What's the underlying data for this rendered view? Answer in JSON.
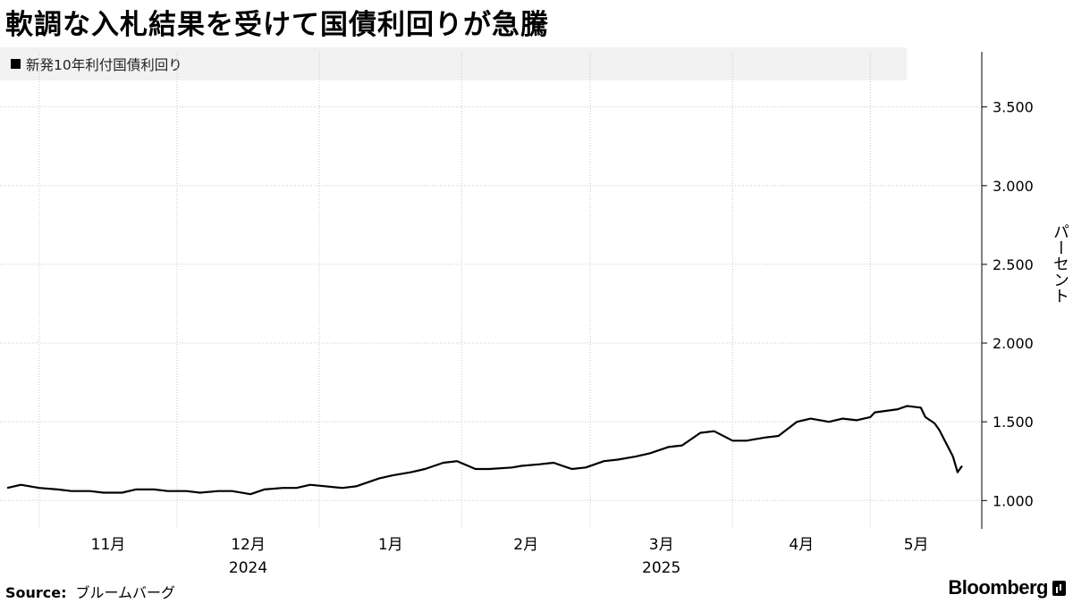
{
  "title": "軟調な入札結果を受けて国債利回りが急騰",
  "source_label": "Source:",
  "source_text": "ブルームバーグ",
  "brand": "Bloomberg",
  "chart_data": {
    "type": "line",
    "title": "軟調な入札結果を受けて国債利回りが急騰",
    "xlabel": "",
    "ylabel": "パーセント",
    "ylim": [
      0.82,
      3.85
    ],
    "yticks": [
      1.0,
      1.5,
      2.0,
      2.5,
      3.0,
      3.5
    ],
    "ytick_labels": [
      "1.000",
      "1.500",
      "2.000",
      "2.500",
      "3.000",
      "3.500"
    ],
    "x_range": [
      "2024-10-25",
      "2025-05-21"
    ],
    "month_ticks": [
      {
        "date": "2024-11-01",
        "label": "11月"
      },
      {
        "date": "2024-12-01",
        "label": "12月"
      },
      {
        "date": "2025-01-01",
        "label": "1月"
      },
      {
        "date": "2025-02-01",
        "label": "2月"
      },
      {
        "date": "2025-03-01",
        "label": "3月"
      },
      {
        "date": "2025-04-01",
        "label": "4月"
      },
      {
        "date": "2025-05-01",
        "label": "5月"
      }
    ],
    "year_labels": [
      {
        "date": "2024-12-01",
        "label": "2024"
      },
      {
        "date": "2025-03-01",
        "label": "2025"
      }
    ],
    "legend_position": "top-left",
    "grid": true,
    "series": [
      {
        "name": "新発10年利付国債利回り",
        "color": "#000000",
        "points": [
          [
            "2024-10-25",
            1.08
          ],
          [
            "2024-10-28",
            1.1
          ],
          [
            "2024-11-01",
            1.08
          ],
          [
            "2024-11-05",
            1.07
          ],
          [
            "2024-11-08",
            1.06
          ],
          [
            "2024-11-12",
            1.06
          ],
          [
            "2024-11-15",
            1.05
          ],
          [
            "2024-11-19",
            1.05
          ],
          [
            "2024-11-22",
            1.07
          ],
          [
            "2024-11-26",
            1.07
          ],
          [
            "2024-11-29",
            1.06
          ],
          [
            "2024-12-03",
            1.06
          ],
          [
            "2024-12-06",
            1.05
          ],
          [
            "2024-12-10",
            1.06
          ],
          [
            "2024-12-13",
            1.06
          ],
          [
            "2024-12-17",
            1.04
          ],
          [
            "2024-12-20",
            1.07
          ],
          [
            "2024-12-24",
            1.08
          ],
          [
            "2024-12-27",
            1.08
          ],
          [
            "2024-12-30",
            1.1
          ],
          [
            "2025-01-06",
            1.08
          ],
          [
            "2025-01-09",
            1.09
          ],
          [
            "2025-01-14",
            1.14
          ],
          [
            "2025-01-17",
            1.16
          ],
          [
            "2025-01-21",
            1.18
          ],
          [
            "2025-01-24",
            1.2
          ],
          [
            "2025-01-28",
            1.24
          ],
          [
            "2025-01-31",
            1.25
          ],
          [
            "2025-02-04",
            1.2
          ],
          [
            "2025-02-07",
            1.2
          ],
          [
            "2025-02-12",
            1.21
          ],
          [
            "2025-02-14",
            1.22
          ],
          [
            "2025-02-18",
            1.23
          ],
          [
            "2025-02-21",
            1.24
          ],
          [
            "2025-02-25",
            1.2
          ],
          [
            "2025-02-28",
            1.21
          ],
          [
            "2025-03-04",
            1.25
          ],
          [
            "2025-03-07",
            1.26
          ],
          [
            "2025-03-11",
            1.28
          ],
          [
            "2025-03-14",
            1.3
          ],
          [
            "2025-03-18",
            1.34
          ],
          [
            "2025-03-21",
            1.35
          ],
          [
            "2025-03-25",
            1.43
          ],
          [
            "2025-03-28",
            1.44
          ],
          [
            "2025-04-01",
            1.38
          ],
          [
            "2025-04-04",
            1.38
          ],
          [
            "2025-04-08",
            1.4
          ],
          [
            "2025-04-11",
            1.41
          ],
          [
            "2025-04-15",
            1.5
          ],
          [
            "2025-04-18",
            1.52
          ],
          [
            "2025-04-22",
            1.5
          ],
          [
            "2025-04-25",
            1.52
          ],
          [
            "2025-04-28",
            1.51
          ],
          [
            "2025-05-01",
            1.53
          ],
          [
            "2025-05-02",
            1.56
          ],
          [
            "2025-05-07",
            1.58
          ],
          [
            "2025-05-09",
            1.6
          ],
          [
            "2025-05-12",
            1.59
          ],
          [
            "2025-05-13",
            1.53
          ],
          [
            "2025-05-15",
            1.49
          ],
          [
            "2025-05-16",
            1.45
          ],
          [
            "2025-05-19",
            1.28
          ],
          [
            "2025-05-20",
            1.18
          ],
          [
            "2025-05-21",
            1.22
          ]
        ]
      }
    ]
  }
}
